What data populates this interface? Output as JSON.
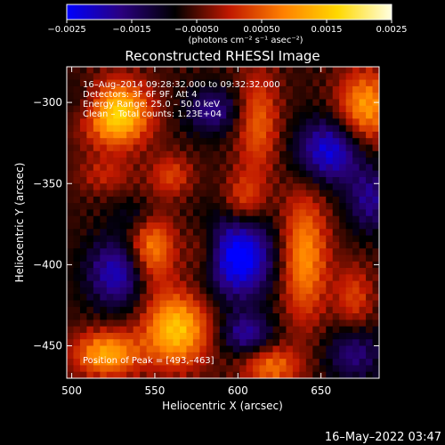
{
  "chart_data": {
    "type": "heatmap",
    "title": "Reconstructed RHESSI Image",
    "xlabel": "Heliocentric X (arcsec)",
    "ylabel": "Heliocentric Y (arcsec)",
    "xlim": [
      497,
      685
    ],
    "ylim": [
      -470,
      -278
    ],
    "xticks": [
      500,
      550,
      600,
      650
    ],
    "xtick_labels": [
      "500",
      "550",
      "600",
      "650"
    ],
    "yticks": [
      -300,
      -350,
      -400,
      -450
    ],
    "ytick_labels": [
      "−300",
      "−350",
      "−400",
      "−450"
    ],
    "colorbar": {
      "range": [
        -0.0025,
        0.0025
      ],
      "ticks": [
        -0.0025,
        -0.0015,
        -0.0005,
        0.0005,
        0.0015,
        0.0025
      ],
      "tick_labels": [
        "−0.0025",
        "−0.0015",
        "−0.00050",
        "0.00050",
        "0.0015",
        "0.0025"
      ],
      "units": "(photons cm⁻² s⁻¹ asec⁻²)"
    },
    "colormap": [
      "#0000ff",
      "#2a0080",
      "#000000",
      "#c01800",
      "#ff8000",
      "#ffd800",
      "#ffffe0"
    ],
    "annotations": {
      "time_range": "16–Aug–2014 09:28:32.000 to 09:32:32.000",
      "detectors": "Detectors: 3F 6F 9F, Att 4",
      "energy_range": "Energy Range: 25.0 – 50.0 keV",
      "method": "Clean  – Total counts: 1.23E+04",
      "peak": "Position of Peak = [493,–463]"
    },
    "grid": false
  },
  "footer": {
    "date": "16–May–2022 03:47"
  }
}
